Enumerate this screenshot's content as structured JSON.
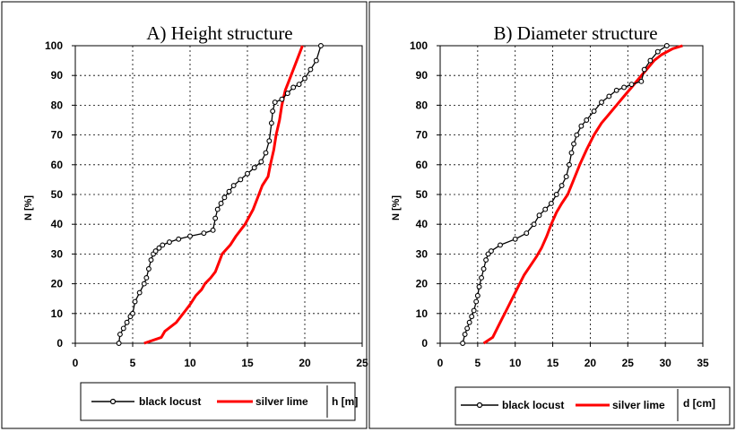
{
  "chart_data": [
    {
      "type": "line",
      "title": "A) Height structure",
      "xlabel": "h [m]",
      "ylabel": "N [%]",
      "xlim": [
        0,
        25
      ],
      "ylim": [
        0,
        100
      ],
      "xticks": [
        "0",
        "5",
        "10",
        "15",
        "20",
        "25"
      ],
      "yticks": [
        "0",
        "10",
        "20",
        "30",
        "40",
        "50",
        "60",
        "70",
        "80",
        "90",
        "100"
      ],
      "grid": true,
      "legend": "bottom",
      "series": [
        {
          "name": "black locust",
          "color": "#000000",
          "marker": "circle",
          "x": [
            3.8,
            3.9,
            4.2,
            4.5,
            4.8,
            5.0,
            5.2,
            5.6,
            6.0,
            6.2,
            6.4,
            6.6,
            6.8,
            7.0,
            7.3,
            7.6,
            8.2,
            9.0,
            10.0,
            11.2,
            12.0,
            12.2,
            12.4,
            12.7,
            13.0,
            13.4,
            13.8,
            14.4,
            15.0,
            15.6,
            16.2,
            16.6,
            16.9,
            17.1,
            17.2,
            17.4,
            18.0,
            18.5,
            19.0,
            19.5,
            20.0,
            20.5,
            21.0,
            21.4
          ],
          "y": [
            0,
            3,
            5,
            7,
            9,
            10,
            14,
            17,
            20,
            22,
            25,
            28,
            30,
            31,
            32,
            33,
            34,
            35,
            36,
            37,
            38,
            42,
            45,
            47,
            49,
            51,
            53,
            55,
            57,
            59,
            61,
            64,
            68,
            74,
            78,
            81,
            82,
            84,
            86,
            87,
            89,
            92,
            95,
            100
          ],
          "series_name_label": "black locust"
        },
        {
          "name": "silver lime",
          "color": "#ff0000",
          "marker": "none",
          "x": [
            6.0,
            7.5,
            7.8,
            8.8,
            9.2,
            9.6,
            10.0,
            10.5,
            11.0,
            11.3,
            11.8,
            12.2,
            12.5,
            12.8,
            13.5,
            14.0,
            14.8,
            15.5,
            16.0,
            16.3,
            16.8,
            17.0,
            17.3,
            17.5,
            17.8,
            18.0,
            18.3,
            18.6,
            19.0,
            19.4,
            19.8
          ],
          "y": [
            0,
            2,
            4,
            7,
            9,
            11,
            13,
            16,
            18,
            20,
            22,
            24,
            27,
            30,
            33,
            36,
            40,
            45,
            50,
            53,
            56,
            60,
            65,
            70,
            75,
            80,
            85,
            88,
            92,
            96,
            100
          ]
        }
      ]
    },
    {
      "type": "line",
      "title": "B) Diameter structure",
      "xlabel": "d [cm]",
      "ylabel": "N [%]",
      "xlim": [
        0,
        35
      ],
      "ylim": [
        0,
        100
      ],
      "xticks": [
        "0",
        "5",
        "10",
        "15",
        "20",
        "25",
        "30",
        "35"
      ],
      "yticks": [
        "0",
        "10",
        "20",
        "30",
        "40",
        "50",
        "60",
        "70",
        "80",
        "90",
        "100"
      ],
      "grid": true,
      "legend": "bottom",
      "series": [
        {
          "name": "black locust",
          "color": "#000000",
          "marker": "circle",
          "x": [
            3.0,
            3.3,
            3.6,
            3.9,
            4.2,
            4.5,
            4.8,
            5.0,
            5.2,
            5.5,
            5.8,
            6.1,
            6.4,
            6.8,
            8.0,
            10.0,
            11.5,
            12.5,
            13.2,
            14.0,
            14.8,
            15.5,
            16.2,
            16.8,
            17.2,
            17.5,
            17.8,
            18.2,
            18.8,
            19.5,
            20.5,
            21.5,
            22.5,
            23.5,
            24.5,
            25.5,
            26.8,
            27.2,
            28.0,
            29.0,
            30.2
          ],
          "y": [
            0,
            3,
            5,
            7,
            9,
            11,
            14,
            16,
            19,
            22,
            25,
            28,
            30,
            31,
            33,
            35,
            37,
            40,
            43,
            45,
            47,
            50,
            53,
            56,
            60,
            64,
            67,
            70,
            73,
            75,
            78,
            81,
            83,
            85,
            86,
            87,
            88,
            92,
            95,
            98,
            100
          ]
        },
        {
          "name": "silver lime",
          "color": "#ff0000",
          "marker": "none",
          "x": [
            5.8,
            7.0,
            7.6,
            8.2,
            8.8,
            9.4,
            10.0,
            10.6,
            11.2,
            12.0,
            12.8,
            13.5,
            14.2,
            14.8,
            15.5,
            16.2,
            17.0,
            17.8,
            18.6,
            19.5,
            20.5,
            21.5,
            22.5,
            23.5,
            24.5,
            25.5,
            26.5,
            27.5,
            28.5,
            29.5,
            31.0,
            32.3
          ],
          "y": [
            0,
            2,
            5,
            8,
            11,
            14,
            17,
            20,
            23,
            26,
            29,
            32,
            36,
            40,
            44,
            47,
            50,
            55,
            60,
            65,
            70,
            74,
            77,
            80,
            83,
            86,
            89,
            92,
            95,
            97,
            99,
            100
          ]
        }
      ]
    }
  ]
}
